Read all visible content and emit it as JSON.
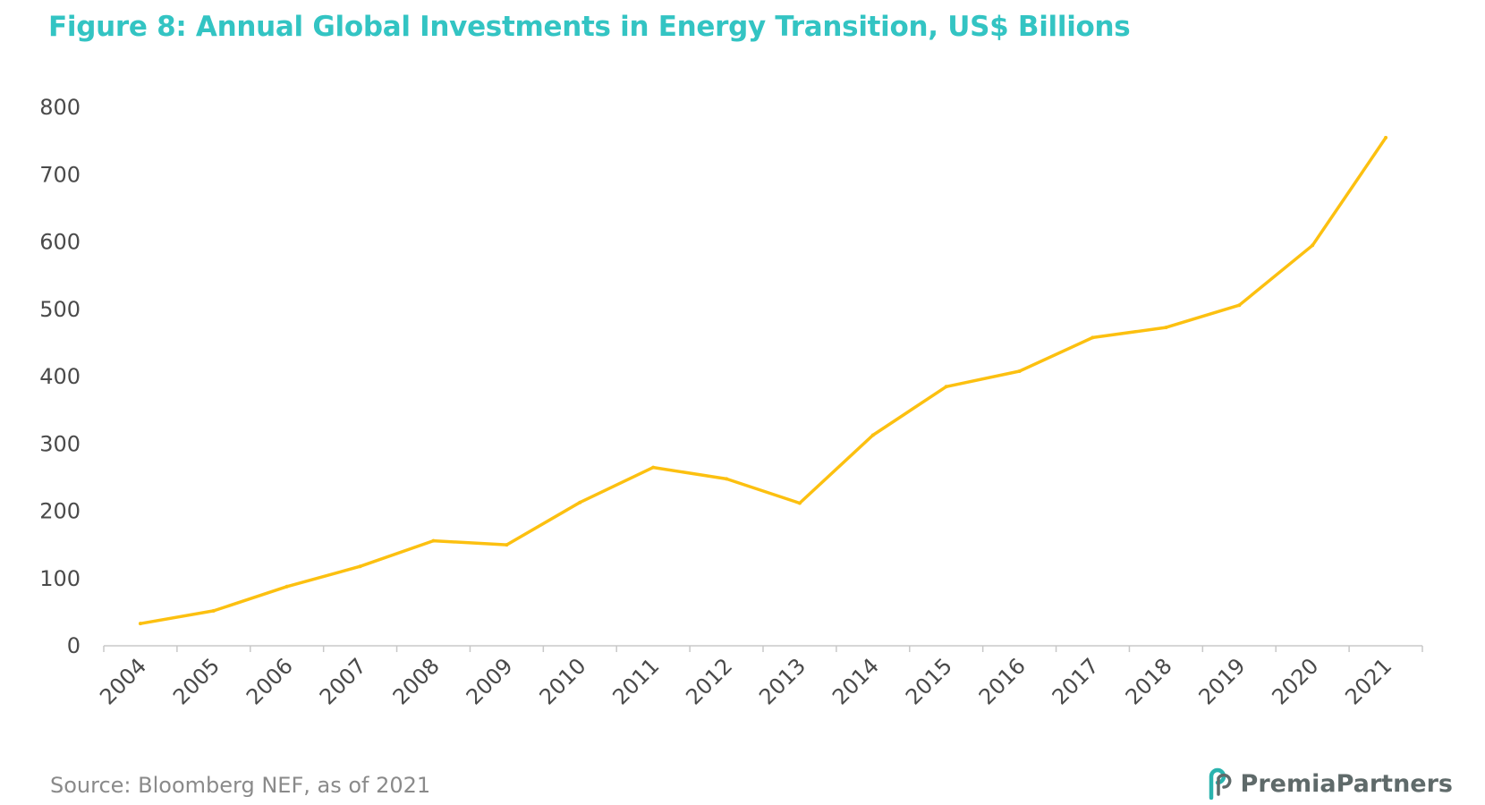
{
  "title": "Figure 8: Annual Global Investments in Energy Transition, US$ Billions",
  "source": "Source: Bloomberg NEF, as of 2021",
  "brand": {
    "name": "PremiaPartners",
    "icon": "premia-partners-logo-icon",
    "accent_color": "#2ab3ae"
  },
  "chart_data": {
    "type": "line",
    "title": "Figure 8: Annual Global Investments in Energy Transition, US$ Billions",
    "xlabel": "",
    "ylabel": "",
    "categories": [
      "2004",
      "2005",
      "2006",
      "2007",
      "2008",
      "2009",
      "2010",
      "2011",
      "2012",
      "2013",
      "2014",
      "2015",
      "2016",
      "2017",
      "2018",
      "2019",
      "2020",
      "2021"
    ],
    "values": [
      33,
      52,
      88,
      118,
      156,
      150,
      213,
      265,
      248,
      212,
      313,
      385,
      408,
      458,
      473,
      506,
      595,
      755
    ],
    "ylim": [
      0,
      800
    ],
    "yticks": [
      0,
      100,
      200,
      300,
      400,
      500,
      600,
      700,
      800
    ],
    "grid": false,
    "legend": "none",
    "line_color": "#fcc010",
    "axis_color": "#c8c8c8"
  }
}
